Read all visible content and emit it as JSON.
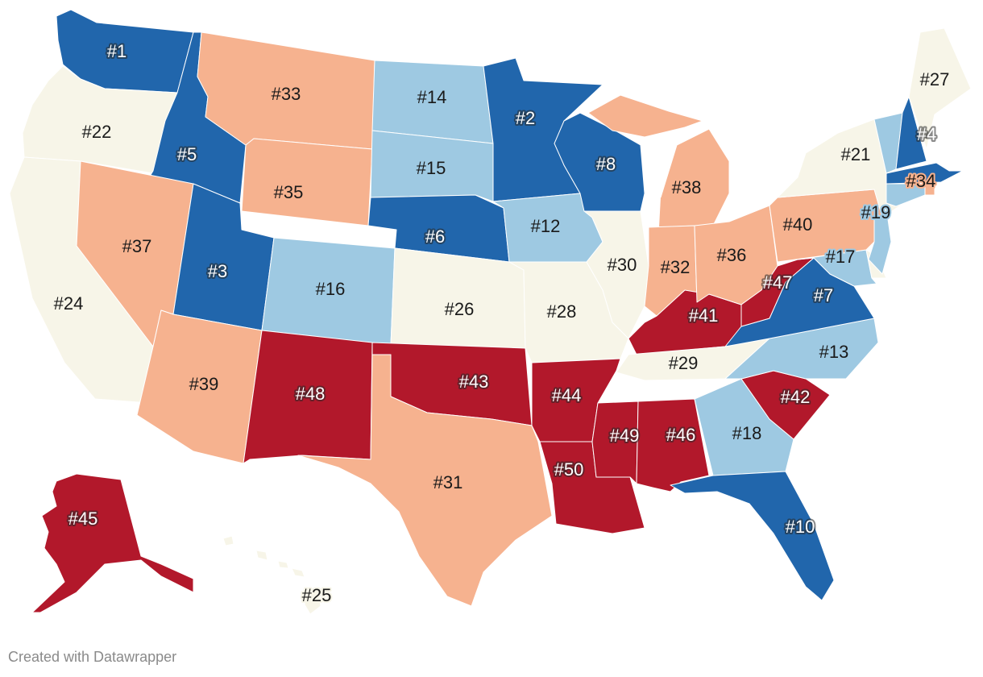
{
  "colors": {
    "dark_blue": "#2166ac",
    "light_blue": "#9ec9e2",
    "cream": "#f7f5e8",
    "salmon": "#f6b28f",
    "red": "#b2182b"
  },
  "states": [
    {
      "code": "WA",
      "label": "#1",
      "cat": "dark_blue"
    },
    {
      "code": "OR",
      "label": "#22",
      "cat": "cream"
    },
    {
      "code": "ID",
      "label": "#5",
      "cat": "dark_blue"
    },
    {
      "code": "MT",
      "label": "#33",
      "cat": "salmon"
    },
    {
      "code": "WY",
      "label": "#35",
      "cat": "salmon"
    },
    {
      "code": "CA",
      "label": "#24",
      "cat": "cream"
    },
    {
      "code": "NV",
      "label": "#37",
      "cat": "salmon"
    },
    {
      "code": "UT",
      "label": "#3",
      "cat": "dark_blue"
    },
    {
      "code": "AZ",
      "label": "#39",
      "cat": "salmon"
    },
    {
      "code": "CO",
      "label": "#16",
      "cat": "light_blue"
    },
    {
      "code": "NM",
      "label": "#48",
      "cat": "red"
    },
    {
      "code": "ND",
      "label": "#14",
      "cat": "light_blue"
    },
    {
      "code": "SD",
      "label": "#15",
      "cat": "light_blue"
    },
    {
      "code": "NE",
      "label": "#6",
      "cat": "dark_blue"
    },
    {
      "code": "KS",
      "label": "#26",
      "cat": "cream"
    },
    {
      "code": "OK",
      "label": "#43",
      "cat": "red"
    },
    {
      "code": "TX",
      "label": "#31",
      "cat": "salmon"
    },
    {
      "code": "MN",
      "label": "#2",
      "cat": "dark_blue"
    },
    {
      "code": "IA",
      "label": "#12",
      "cat": "light_blue"
    },
    {
      "code": "MO",
      "label": "#28",
      "cat": "cream"
    },
    {
      "code": "AR",
      "label": "#44",
      "cat": "red"
    },
    {
      "code": "LA",
      "label": "#50",
      "cat": "red"
    },
    {
      "code": "WI",
      "label": "#8",
      "cat": "dark_blue"
    },
    {
      "code": "IL",
      "label": "#30",
      "cat": "cream"
    },
    {
      "code": "MS",
      "label": "#49",
      "cat": "red"
    },
    {
      "code": "MI",
      "label": "#38",
      "cat": "salmon"
    },
    {
      "code": "IN",
      "label": "#32",
      "cat": "salmon"
    },
    {
      "code": "KY",
      "label": "#41",
      "cat": "red"
    },
    {
      "code": "TN",
      "label": "#29",
      "cat": "cream"
    },
    {
      "code": "AL",
      "label": "#46",
      "cat": "red"
    },
    {
      "code": "OH",
      "label": "#36",
      "cat": "salmon"
    },
    {
      "code": "GA",
      "label": "#18",
      "cat": "light_blue"
    },
    {
      "code": "FL",
      "label": "#10",
      "cat": "dark_blue"
    },
    {
      "code": "SC",
      "label": "#42",
      "cat": "red"
    },
    {
      "code": "NC",
      "label": "#13",
      "cat": "light_blue"
    },
    {
      "code": "VA",
      "label": "#7",
      "cat": "dark_blue"
    },
    {
      "code": "WV",
      "label": "#47",
      "cat": "red"
    },
    {
      "code": "MD",
      "label": "#17",
      "cat": "light_blue"
    },
    {
      "code": "DE",
      "label": null,
      "cat": "cream"
    },
    {
      "code": "PA",
      "label": "#40",
      "cat": "salmon"
    },
    {
      "code": "NJ",
      "label": "#19",
      "cat": "light_blue"
    },
    {
      "code": "NY",
      "label": "#21",
      "cat": "cream"
    },
    {
      "code": "CT",
      "label": null,
      "cat": "light_blue"
    },
    {
      "code": "RI",
      "label": "#34",
      "cat": "salmon"
    },
    {
      "code": "MA",
      "label": null,
      "cat": "dark_blue"
    },
    {
      "code": "VT",
      "label": null,
      "cat": "light_blue"
    },
    {
      "code": "NH",
      "label": "#4",
      "cat": "dark_blue"
    },
    {
      "code": "ME",
      "label": "#27",
      "cat": "cream"
    },
    {
      "code": "AK",
      "label": "#45",
      "cat": "red"
    },
    {
      "code": "HI",
      "label": "#25",
      "cat": "cream"
    }
  ],
  "footer": "Created with Datawrapper"
}
